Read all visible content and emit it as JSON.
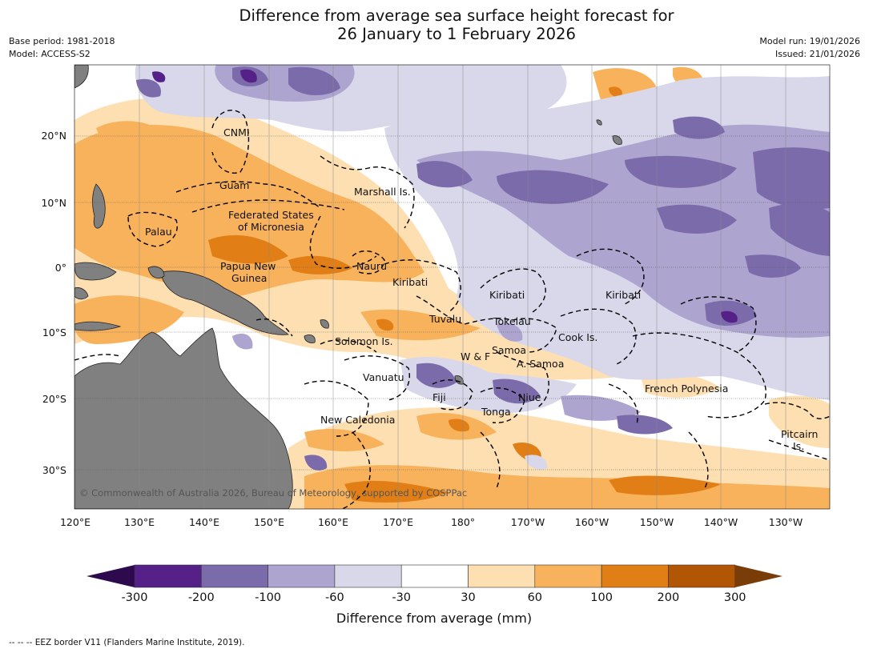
{
  "header": {
    "title_line1": "Difference from average sea surface height forecast for",
    "title_line2": "26 January to 1 February 2026",
    "base_period": "Base period: 1981-2018",
    "model": "Model: ACCESS-S2",
    "model_run": "Model run: 19/01/2026",
    "issued": "Issued: 21/01/2026"
  },
  "map": {
    "longitude_labels": [
      "120°E",
      "130°E",
      "140°E",
      "150°E",
      "160°E",
      "170°E",
      "180°",
      "170°W",
      "160°W",
      "150°W",
      "140°W",
      "130°W"
    ],
    "latitude_labels": [
      "20°N",
      "10°N",
      "0°",
      "10°S",
      "20°S",
      "30°S"
    ],
    "region_labels": [
      "CNMI",
      "Guam",
      "Marshall Is.",
      "Federated States",
      "of Micronesia",
      "Palau",
      "Papua New",
      "Guinea",
      "Nauru",
      "Kiribati",
      "Kiribati",
      "Kiribati",
      "Tuvalu",
      "Tokelau",
      "Cook Is.",
      "Solomon Is.",
      "Samoa",
      "W & F",
      "A. Samoa",
      "Vanuatu",
      "Fiji",
      "Niue",
      "French Polynesia",
      "Tonga",
      "New Caledonia",
      "Pitcairn",
      "Is."
    ],
    "copyright": "© Commonwealth of Australia 2026, Bureau of Meteorology, supported by COSPPac",
    "colors": {
      "land": "#808080",
      "ocean": "#ffffff",
      "eez": "#000000"
    }
  },
  "colorbar": {
    "ticks": [
      "-300",
      "-200",
      "-100",
      "-60",
      "-30",
      "30",
      "60",
      "100",
      "200",
      "300"
    ],
    "colors": [
      "#2d0a4e",
      "#562089",
      "#7c6baa",
      "#ada5cf",
      "#d8d8ea",
      "#ffffff",
      "#fddfb1",
      "#f9b25c",
      "#e17f16",
      "#b15605",
      "#7a3c08"
    ],
    "title": "Difference from average (mm)"
  },
  "footer": {
    "eez_note": "--  --  -- EEZ border V11 (Flanders Marine Institute, 2019)."
  }
}
